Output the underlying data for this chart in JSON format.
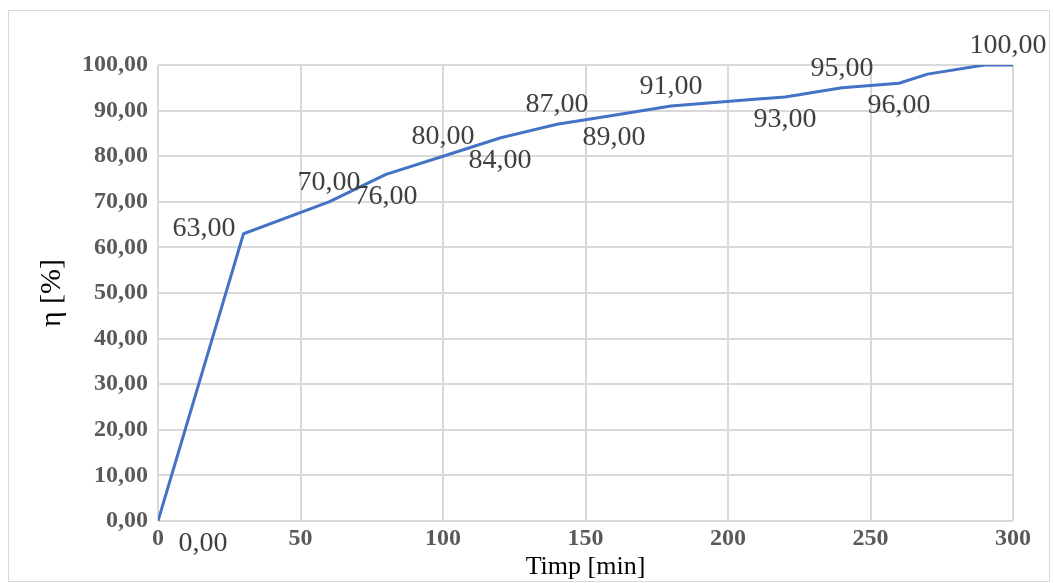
{
  "chart_data": {
    "type": "line",
    "xlabel": "Timp [min]",
    "ylabel": "η [%]",
    "x": [
      0,
      30,
      60,
      80,
      100,
      120,
      140,
      160,
      180,
      220,
      240,
      260,
      270,
      290,
      300
    ],
    "series": [
      {
        "color": "#4472c4",
        "values": [
          0,
          63,
          70,
          76,
          80,
          84,
          87,
          89,
          91,
          93,
          95,
          96,
          98,
          100,
          100
        ],
        "value_labels": [
          "0,00",
          "63,00",
          "70,00",
          "76,00",
          "80,00",
          "84,00",
          "87,00",
          "89,00",
          "91,00",
          "93,00",
          "95,00",
          "96,00",
          null,
          null,
          "100,00"
        ]
      }
    ],
    "xlim": [
      0,
      300
    ],
    "xticks": [
      0,
      50,
      100,
      150,
      200,
      250,
      300
    ],
    "ylim": [
      0,
      100
    ],
    "yticks": [
      {
        "value": 0,
        "label": "0,00"
      },
      {
        "value": 10,
        "label": "10,00"
      },
      {
        "value": 20,
        "label": "20,00"
      },
      {
        "value": 30,
        "label": "30,00"
      },
      {
        "value": 40,
        "label": "40,00"
      },
      {
        "value": 50,
        "label": "50,00"
      },
      {
        "value": 60,
        "label": "60,00"
      },
      {
        "value": 70,
        "label": "70,00"
      },
      {
        "value": 80,
        "label": "80,00"
      },
      {
        "value": 90,
        "label": "90,00"
      },
      {
        "value": 100,
        "label": "100,00"
      }
    ],
    "grid": true,
    "legend": false,
    "marker": "none",
    "line_style": "solid"
  }
}
